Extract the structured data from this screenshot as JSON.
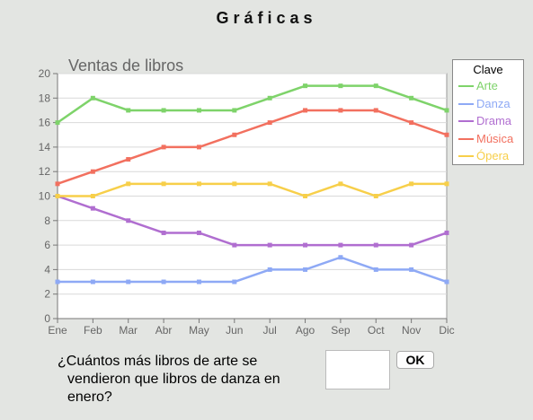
{
  "page": {
    "title": "Gráficas"
  },
  "question": {
    "line1": "¿Cuántos más libros de arte se",
    "line2": "vendieron que libros de danza en",
    "line3": "enero?",
    "answer": "",
    "ok_label": "OK"
  },
  "chart_data": {
    "type": "line",
    "title": "Ventas de libros",
    "xlabel": "",
    "ylabel": "",
    "categories": [
      "Ene",
      "Feb",
      "Mar",
      "Abr",
      "May",
      "Jun",
      "Jul",
      "Ago",
      "Sep",
      "Oct",
      "Nov",
      "Dic"
    ],
    "ylim": [
      0,
      20
    ],
    "yticks": [
      0,
      2,
      4,
      6,
      8,
      10,
      12,
      14,
      16,
      18,
      20
    ],
    "grid": true,
    "legend_title": "Clave",
    "legend_position": "right",
    "series": [
      {
        "name": "Arte",
        "color": "#7ed36a",
        "values": [
          16,
          18,
          17,
          17,
          17,
          17,
          18,
          19,
          19,
          19,
          18,
          17
        ]
      },
      {
        "name": "Danza",
        "color": "#8ea9f5",
        "values": [
          3,
          3,
          3,
          3,
          3,
          3,
          4,
          4,
          5,
          4,
          4,
          3
        ]
      },
      {
        "name": "Drama",
        "color": "#b06ed0",
        "values": [
          10,
          9,
          8,
          7,
          7,
          6,
          6,
          6,
          6,
          6,
          6,
          7
        ]
      },
      {
        "name": "Música",
        "color": "#f2705f",
        "values": [
          11,
          12,
          13,
          14,
          14,
          15,
          16,
          17,
          17,
          17,
          16,
          15
        ]
      },
      {
        "name": "Ópera",
        "color": "#f7cf4a",
        "values": [
          10,
          10,
          11,
          11,
          11,
          11,
          11,
          10,
          11,
          10,
          11,
          11
        ]
      }
    ]
  }
}
